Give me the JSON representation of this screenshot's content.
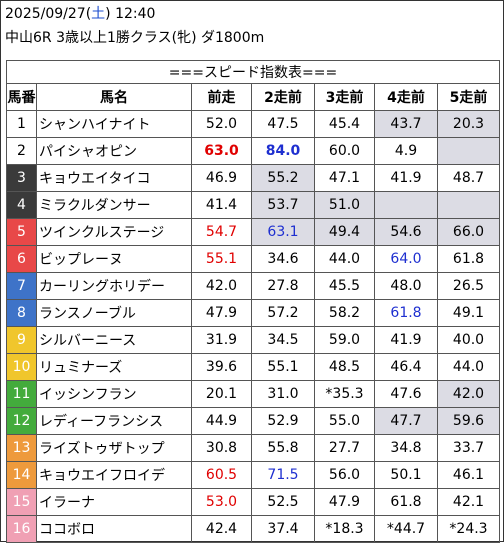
{
  "header": {
    "date": "2025/09/27",
    "weekday_open": "(",
    "weekday": "土",
    "weekday_close": ")",
    "time": "12:40",
    "race": "中山6R 3歳以上1勝クラス(牝) ダ1800m"
  },
  "table": {
    "title": "===スピード指数表===",
    "columns": [
      "馬番",
      "馬名",
      "前走",
      "2走前",
      "3走前",
      "4走前",
      "5走前"
    ],
    "rows": [
      {
        "num": "1",
        "name": "シャンハイナイト",
        "bg": "#ffffff",
        "fg": "#000000",
        "cells": [
          {
            "v": "52.0"
          },
          {
            "v": "47.5"
          },
          {
            "v": "45.4"
          },
          {
            "v": "43.7",
            "s": "gray"
          },
          {
            "v": "20.3",
            "s": "gray"
          }
        ]
      },
      {
        "num": "2",
        "name": "パイシャオピン",
        "bg": "#ffffff",
        "fg": "#000000",
        "cells": [
          {
            "v": "63.0",
            "s": "red bold"
          },
          {
            "v": "84.0",
            "s": "blue bold"
          },
          {
            "v": "60.0"
          },
          {
            "v": "4.9"
          },
          {
            "v": "",
            "s": "gray"
          }
        ]
      },
      {
        "num": "3",
        "name": "キョウエイタイコ",
        "bg": "#3a3a3a",
        "fg": "#ffffff",
        "cells": [
          {
            "v": "46.9"
          },
          {
            "v": "55.2",
            "s": "gray"
          },
          {
            "v": "47.1"
          },
          {
            "v": "41.9"
          },
          {
            "v": "48.7"
          }
        ]
      },
      {
        "num": "4",
        "name": "ミラクルダンサー",
        "bg": "#3a3a3a",
        "fg": "#ffffff",
        "cells": [
          {
            "v": "41.4"
          },
          {
            "v": "53.7",
            "s": "gray"
          },
          {
            "v": "51.0",
            "s": "gray"
          },
          {
            "v": "",
            "s": "gray"
          },
          {
            "v": "",
            "s": "gray"
          }
        ]
      },
      {
        "num": "5",
        "name": "ツインクルステージ",
        "bg": "#e84848",
        "fg": "#ffffff",
        "cells": [
          {
            "v": "54.7",
            "s": "red"
          },
          {
            "v": "63.1",
            "s": "blue gray"
          },
          {
            "v": "49.4",
            "s": "gray"
          },
          {
            "v": "54.6",
            "s": "gray"
          },
          {
            "v": "66.0",
            "s": "gray"
          }
        ]
      },
      {
        "num": "6",
        "name": "ビップレーヌ",
        "bg": "#e84848",
        "fg": "#ffffff",
        "cells": [
          {
            "v": "55.1",
            "s": "red"
          },
          {
            "v": "34.6"
          },
          {
            "v": "44.0"
          },
          {
            "v": "64.0",
            "s": "blue"
          },
          {
            "v": "61.8"
          }
        ]
      },
      {
        "num": "7",
        "name": "カーリングホリデー",
        "bg": "#3e73c8",
        "fg": "#ffffff",
        "cells": [
          {
            "v": "42.0"
          },
          {
            "v": "27.8"
          },
          {
            "v": "45.5"
          },
          {
            "v": "48.0"
          },
          {
            "v": "26.5"
          }
        ]
      },
      {
        "num": "8",
        "name": "ランスノーブル",
        "bg": "#3e73c8",
        "fg": "#ffffff",
        "cells": [
          {
            "v": "47.9"
          },
          {
            "v": "57.2"
          },
          {
            "v": "58.2"
          },
          {
            "v": "61.8",
            "s": "blue"
          },
          {
            "v": "49.1"
          }
        ]
      },
      {
        "num": "9",
        "name": "シルバーニース",
        "bg": "#f0c62c",
        "fg": "#ffffff",
        "cells": [
          {
            "v": "31.9"
          },
          {
            "v": "34.5"
          },
          {
            "v": "59.0"
          },
          {
            "v": "41.9"
          },
          {
            "v": "40.0"
          }
        ]
      },
      {
        "num": "10",
        "name": "リュミナーズ",
        "bg": "#f0c62c",
        "fg": "#ffffff",
        "cells": [
          {
            "v": "39.6"
          },
          {
            "v": "55.1"
          },
          {
            "v": "48.5"
          },
          {
            "v": "46.4"
          },
          {
            "v": "44.0"
          }
        ]
      },
      {
        "num": "11",
        "name": "イッシンフラン",
        "bg": "#43ab3c",
        "fg": "#ffffff",
        "cells": [
          {
            "v": "20.1"
          },
          {
            "v": "31.0"
          },
          {
            "v": "*35.3"
          },
          {
            "v": "47.6"
          },
          {
            "v": "42.0",
            "s": "gray"
          }
        ]
      },
      {
        "num": "12",
        "name": "レディーフランシス",
        "bg": "#43ab3c",
        "fg": "#ffffff",
        "cells": [
          {
            "v": "44.9"
          },
          {
            "v": "52.9"
          },
          {
            "v": "55.0"
          },
          {
            "v": "47.7",
            "s": "gray"
          },
          {
            "v": "59.6",
            "s": "gray"
          }
        ]
      },
      {
        "num": "13",
        "name": "ライズトゥザトップ",
        "bg": "#ee9a3c",
        "fg": "#ffffff",
        "cells": [
          {
            "v": "30.8"
          },
          {
            "v": "55.8"
          },
          {
            "v": "27.7"
          },
          {
            "v": "34.8"
          },
          {
            "v": "33.7"
          }
        ]
      },
      {
        "num": "14",
        "name": "キョウエイフロイデ",
        "bg": "#ee9a3c",
        "fg": "#ffffff",
        "cells": [
          {
            "v": "60.5",
            "s": "red"
          },
          {
            "v": "71.5",
            "s": "blue"
          },
          {
            "v": "56.0"
          },
          {
            "v": "50.1"
          },
          {
            "v": "46.1"
          }
        ]
      },
      {
        "num": "15",
        "name": "イラーナ",
        "bg": "#f0a0b4",
        "fg": "#ffffff",
        "cells": [
          {
            "v": "53.0",
            "s": "red"
          },
          {
            "v": "52.5"
          },
          {
            "v": "47.9"
          },
          {
            "v": "61.8"
          },
          {
            "v": "42.1"
          }
        ]
      },
      {
        "num": "16",
        "name": "ココボロ",
        "bg": "#f0a0b4",
        "fg": "#ffffff",
        "cells": [
          {
            "v": "42.4"
          },
          {
            "v": "37.4"
          },
          {
            "v": "*18.3"
          },
          {
            "v": "*44.7"
          },
          {
            "v": "*24.3"
          }
        ]
      }
    ]
  }
}
